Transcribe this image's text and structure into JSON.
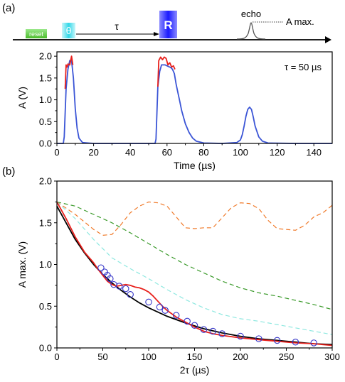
{
  "panel_labels": {
    "a": "(a)",
    "b": "(b)"
  },
  "sequence": {
    "reset": "reset",
    "theta": "θ",
    "tau": "τ",
    "refocus": "R",
    "echo": "echo",
    "amax": "A max."
  },
  "colors": {
    "reset": "#5ccc3c",
    "theta": "#33d8e8",
    "refocus": "#1a1aff",
    "red": "#e8201c",
    "blue": "#3b55d6",
    "black": "#000000",
    "orange": "#f07a2a",
    "green": "#3a9a2a",
    "cyan": "#8ee8e0",
    "circles": "#3535c8"
  },
  "chart_data": [
    {
      "type": "line",
      "annotation": "τ = 50 µs",
      "xlabel": "Time (µs)",
      "ylabel": "A (V)",
      "xlim": [
        0,
        150
      ],
      "ylim": [
        0,
        2.1
      ],
      "xticks": [
        "0",
        "20",
        "40",
        "60",
        "80",
        "100",
        "120",
        "140"
      ],
      "yticks": [
        "0.0",
        "0.5",
        "1.0",
        "1.5",
        "2.0"
      ],
      "series": [
        {
          "color": "blue",
          "x": [
            0,
            3.5,
            4,
            5,
            6,
            7,
            8,
            9,
            10,
            11,
            12,
            14,
            20,
            40,
            53.5,
            54,
            55,
            56,
            57,
            58,
            59,
            60,
            61,
            62,
            63,
            64,
            65,
            66,
            67,
            68,
            70,
            72,
            74,
            76,
            80,
            90,
            98,
            100,
            101,
            102,
            103,
            104,
            105,
            106,
            107,
            108,
            110,
            112,
            115,
            130,
            150
          ],
          "y": [
            0,
            0,
            0.15,
            1.25,
            1.7,
            1.9,
            1.9,
            1.5,
            0.8,
            0.35,
            0.12,
            0.02,
            0,
            0,
            0,
            0.1,
            1.3,
            1.65,
            1.8,
            1.8,
            1.8,
            1.78,
            1.76,
            1.74,
            1.7,
            1.6,
            1.35,
            1.15,
            0.95,
            0.75,
            0.45,
            0.25,
            0.12,
            0.05,
            0.01,
            0,
            0.02,
            0.08,
            0.2,
            0.4,
            0.62,
            0.78,
            0.83,
            0.78,
            0.6,
            0.4,
            0.15,
            0.05,
            0.01,
            0,
            0
          ]
        },
        {
          "color": "red",
          "x": [
            4.5,
            5,
            5.5,
            6,
            7,
            8,
            8.7
          ],
          "y": [
            1.25,
            1.8,
            1.75,
            1.82,
            1.8,
            2.0,
            1.8
          ]
        },
        {
          "color": "red",
          "x": [
            55,
            55.5,
            56.5,
            57.5,
            58.5,
            59.5,
            60.5,
            61.5,
            62.5,
            63.5,
            64.3
          ],
          "y": [
            1.3,
            1.9,
            1.98,
            1.92,
            1.98,
            1.95,
            1.8,
            1.85,
            1.75,
            1.78,
            1.7
          ]
        }
      ]
    },
    {
      "type": "line",
      "xlabel": "2τ (µs)",
      "ylabel": "A max. (V)",
      "xlim": [
        0,
        300
      ],
      "ylim": [
        0,
        2.0
      ],
      "xticks": [
        "0",
        "50",
        "100",
        "150",
        "200",
        "250",
        "300"
      ],
      "yticks": [
        "0.0",
        "0.5",
        "1.0",
        "1.5",
        "2.0"
      ],
      "series": [
        {
          "color": "orange",
          "dash": true,
          "x": [
            0,
            20,
            40,
            50,
            60,
            70,
            80,
            90,
            100,
            110,
            120,
            130,
            140,
            150,
            160,
            170,
            180,
            190,
            200,
            210,
            220,
            230,
            240,
            250,
            260,
            270,
            280,
            290,
            300
          ],
          "y": [
            1.75,
            1.6,
            1.42,
            1.35,
            1.36,
            1.48,
            1.62,
            1.7,
            1.75,
            1.74,
            1.7,
            1.57,
            1.44,
            1.43,
            1.44,
            1.44,
            1.56,
            1.68,
            1.74,
            1.73,
            1.67,
            1.53,
            1.43,
            1.42,
            1.41,
            1.47,
            1.57,
            1.62,
            1.71
          ]
        },
        {
          "color": "green",
          "dash": true,
          "x": [
            0,
            20,
            40,
            60,
            80,
            100,
            120,
            140,
            160,
            180,
            200,
            220,
            240,
            260,
            280,
            300
          ],
          "y": [
            1.75,
            1.7,
            1.6,
            1.5,
            1.38,
            1.25,
            1.12,
            1.0,
            0.9,
            0.8,
            0.72,
            0.66,
            0.62,
            0.57,
            0.52,
            0.46
          ]
        },
        {
          "color": "cyan",
          "dash": true,
          "x": [
            0,
            20,
            40,
            60,
            80,
            100,
            120,
            140,
            160,
            180,
            200,
            220,
            240,
            260,
            280,
            300
          ],
          "y": [
            1.75,
            1.55,
            1.3,
            1.08,
            0.95,
            0.83,
            0.7,
            0.58,
            0.48,
            0.4,
            0.35,
            0.32,
            0.28,
            0.24,
            0.2,
            0.16
          ]
        },
        {
          "color": "black",
          "x": [
            0,
            10,
            20,
            30,
            40,
            50,
            60,
            70,
            80,
            90,
            100,
            120,
            140,
            160,
            180,
            200,
            220,
            240,
            260,
            280,
            300
          ],
          "y": [
            1.7,
            1.5,
            1.3,
            1.14,
            1.0,
            0.88,
            0.78,
            0.69,
            0.61,
            0.54,
            0.48,
            0.38,
            0.3,
            0.23,
            0.18,
            0.14,
            0.11,
            0.09,
            0.07,
            0.05,
            0.04
          ]
        },
        {
          "color": "red",
          "x": [
            0,
            10,
            20,
            30,
            40,
            45,
            50,
            55,
            60,
            65,
            70,
            75,
            80,
            85,
            90,
            95,
            100,
            105,
            110,
            115,
            120,
            125,
            130,
            140,
            150,
            160,
            170,
            180,
            200,
            220,
            240,
            260,
            280,
            300
          ],
          "y": [
            1.75,
            1.55,
            1.33,
            1.15,
            1.02,
            0.94,
            0.87,
            0.8,
            0.76,
            0.74,
            0.75,
            0.76,
            0.75,
            0.73,
            0.72,
            0.7,
            0.67,
            0.62,
            0.56,
            0.5,
            0.45,
            0.41,
            0.37,
            0.31,
            0.25,
            0.2,
            0.17,
            0.15,
            0.12,
            0.1,
            0.08,
            0.06,
            0.05,
            0.03
          ]
        }
      ],
      "points": {
        "color": "circles",
        "x": [
          48,
          52,
          55,
          58,
          62,
          68,
          75,
          80,
          100,
          112,
          118,
          130,
          142,
          150,
          160,
          170,
          180,
          200,
          220,
          240,
          260,
          280
        ],
        "y": [
          0.96,
          0.91,
          0.87,
          0.83,
          0.76,
          0.74,
          0.71,
          0.64,
          0.55,
          0.49,
          0.45,
          0.39,
          0.32,
          0.27,
          0.22,
          0.2,
          0.17,
          0.14,
          0.11,
          0.09,
          0.07,
          0.06
        ]
      }
    }
  ]
}
